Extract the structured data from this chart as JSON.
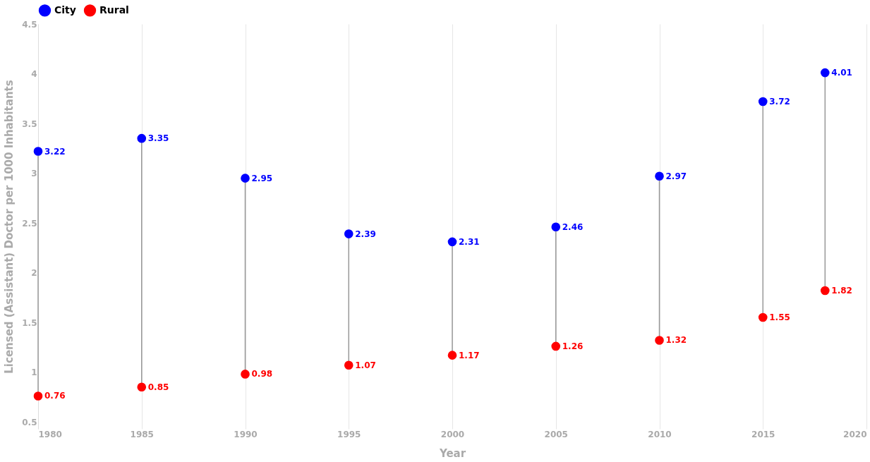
{
  "chart_data": {
    "type": "scatter",
    "xlabel": "Year",
    "ylabel": "Licensed (Assistant) Doctor per 1000 Inhabitants",
    "x": [
      1980,
      1985,
      1990,
      1995,
      2000,
      2005,
      2010,
      2015,
      2018
    ],
    "series": [
      {
        "name": "City",
        "color": "#0000ff",
        "values": [
          3.22,
          3.35,
          2.95,
          2.39,
          2.31,
          2.46,
          2.97,
          3.72,
          4.01
        ]
      },
      {
        "name": "Rural",
        "color": "#ff0000",
        "values": [
          0.76,
          0.85,
          0.98,
          1.07,
          1.17,
          1.26,
          1.32,
          1.55,
          1.82
        ]
      }
    ],
    "xlim": [
      1980,
      2020
    ],
    "xticks": [
      1980,
      1985,
      1990,
      1995,
      2000,
      2005,
      2010,
      2015,
      2020
    ],
    "ylim": [
      0.43,
      4.5
    ],
    "yticks": [
      0.5,
      1,
      1.5,
      2,
      2.5,
      3,
      3.5,
      4,
      4.5
    ],
    "grid": "x",
    "legend": "top left",
    "marker": "circle",
    "data_labels": true
  }
}
